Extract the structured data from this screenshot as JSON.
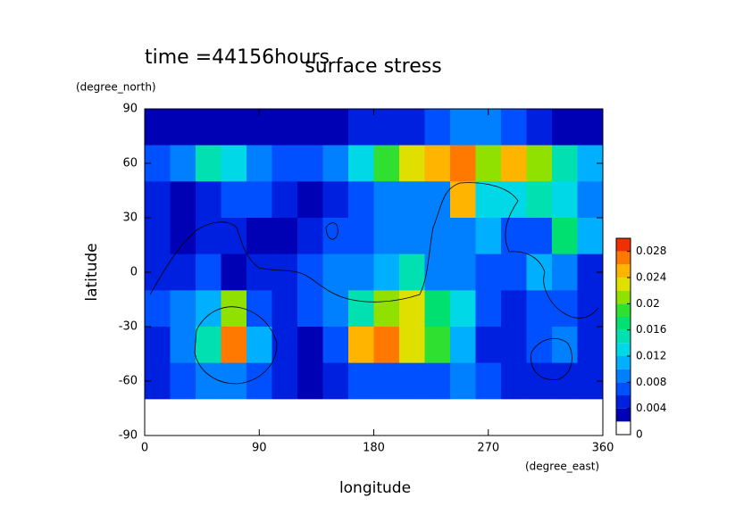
{
  "chart_data": {
    "type": "contour",
    "title": "surface stress",
    "subtitle": "time =44156hours",
    "y_label": "latitude",
    "y_unit": "(degree_north)",
    "x_label": "longitude",
    "x_unit": "(degree_east)",
    "xlim": [
      0,
      360
    ],
    "ylim": [
      -90,
      90
    ],
    "xticks": [
      0,
      90,
      180,
      270,
      360
    ],
    "yticks": [
      -90,
      -60,
      -30,
      0,
      30,
      60,
      90
    ],
    "field": {
      "x": [
        10,
        30,
        50,
        70,
        90,
        110,
        130,
        150,
        170,
        190,
        210,
        230,
        250,
        270,
        290,
        310,
        330,
        350
      ],
      "y": [
        80,
        60,
        40,
        20,
        0,
        -20,
        -40,
        -60,
        -80
      ],
      "values": [
        [
          0.003,
          0.003,
          0.003,
          0.003,
          0.003,
          0.003,
          0.003,
          0.003,
          0.004,
          0.004,
          0.004,
          0.006,
          0.008,
          0.008,
          0.006,
          0.004,
          0.003,
          0.003
        ],
        [
          0.006,
          0.008,
          0.014,
          0.012,
          0.008,
          0.006,
          0.006,
          0.008,
          0.012,
          0.018,
          0.022,
          0.024,
          0.026,
          0.02,
          0.024,
          0.02,
          0.014,
          0.01
        ],
        [
          0.004,
          0.002,
          0.004,
          0.006,
          0.006,
          0.004,
          0.002,
          0.004,
          0.006,
          0.008,
          0.008,
          0.008,
          0.024,
          0.012,
          0.012,
          0.014,
          0.012,
          0.008
        ],
        [
          0.004,
          0.002,
          0.004,
          0.004,
          0.002,
          0.002,
          0.004,
          0.006,
          0.006,
          0.008,
          0.008,
          0.008,
          0.008,
          0.01,
          0.006,
          0.006,
          0.016,
          0.01
        ],
        [
          0.004,
          0.004,
          0.006,
          0.002,
          0.004,
          0.004,
          0.006,
          0.008,
          0.008,
          0.01,
          0.014,
          0.008,
          0.008,
          0.006,
          0.006,
          0.01,
          0.008,
          0.004
        ],
        [
          0.006,
          0.008,
          0.01,
          0.02,
          0.006,
          0.004,
          0.006,
          0.008,
          0.014,
          0.02,
          0.022,
          0.016,
          0.012,
          0.006,
          0.004,
          0.006,
          0.006,
          0.004
        ],
        [
          0.004,
          0.008,
          0.014,
          0.026,
          0.01,
          0.004,
          0.002,
          0.006,
          0.024,
          0.026,
          0.022,
          0.018,
          0.01,
          0.004,
          0.004,
          0.006,
          0.008,
          0.004
        ],
        [
          0.004,
          0.006,
          0.008,
          0.008,
          0.006,
          0.004,
          0.002,
          0.004,
          0.006,
          0.006,
          0.006,
          0.006,
          0.008,
          0.006,
          0.004,
          0.004,
          0.004,
          0.004
        ],
        [
          0,
          0,
          0,
          0,
          0,
          0,
          0,
          0,
          0,
          0,
          0,
          0,
          0,
          0,
          0,
          0,
          0,
          0
        ]
      ]
    },
    "colorbar": {
      "levels": [
        0,
        0.002,
        0.004,
        0.006,
        0.008,
        0.01,
        0.012,
        0.014,
        0.016,
        0.018,
        0.02,
        0.022,
        0.024,
        0.026,
        0.028,
        0.03
      ],
      "colors": [
        "#ffffff",
        "#0000b4",
        "#0020e0",
        "#0050ff",
        "#0080ff",
        "#00b0ff",
        "#00d8e8",
        "#00e0b0",
        "#00e070",
        "#30e030",
        "#90e000",
        "#e0e000",
        "#ffb400",
        "#ff7800",
        "#f03000"
      ],
      "ticks": [
        0,
        0.004,
        0.008,
        0.012,
        0.016,
        0.02,
        0.024,
        0.028
      ]
    }
  }
}
